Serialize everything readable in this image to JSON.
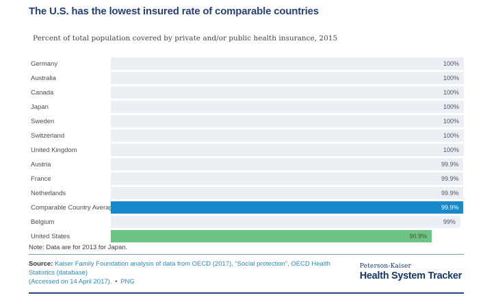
{
  "header": {
    "title": "The U.S. has the lowest insured rate of comparable countries",
    "subtitle": "Percent of total population covered by private and/or public health insurance, 2015"
  },
  "chart_data": {
    "type": "bar",
    "orientation": "horizontal",
    "title": "The U.S. has the lowest insured rate of comparable countries",
    "subtitle": "Percent of total population covered by private and/or public health insurance, 2015",
    "xlim": [
      0,
      100
    ],
    "grid": false,
    "legend": false,
    "categories": [
      "Germany",
      "Australia",
      "Canada",
      "Japan",
      "Sweden",
      "Switzerland",
      "United Kingdom",
      "Austria",
      "France",
      "Netherlands",
      "Comparable Country Average",
      "Belgium",
      "United States"
    ],
    "values": [
      100,
      100,
      100,
      100,
      100,
      100,
      100,
      99.9,
      99.9,
      99.9,
      99.9,
      99,
      90.9
    ],
    "rows": [
      {
        "label": "Germany",
        "value": 100,
        "display": "100%",
        "variant": ""
      },
      {
        "label": "Australia",
        "value": 100,
        "display": "100%",
        "variant": ""
      },
      {
        "label": "Canada",
        "value": 100,
        "display": "100%",
        "variant": ""
      },
      {
        "label": "Japan",
        "value": 100,
        "display": "100%",
        "variant": ""
      },
      {
        "label": "Sweden",
        "value": 100,
        "display": "100%",
        "variant": ""
      },
      {
        "label": "Switzerland",
        "value": 100,
        "display": "100%",
        "variant": ""
      },
      {
        "label": "United Kingdom",
        "value": 100,
        "display": "100%",
        "variant": ""
      },
      {
        "label": "Austria",
        "value": 99.9,
        "display": "99.9%",
        "variant": ""
      },
      {
        "label": "France",
        "value": 99.9,
        "display": "99.9%",
        "variant": ""
      },
      {
        "label": "Netherlands",
        "value": 99.9,
        "display": "99.9%",
        "variant": ""
      },
      {
        "label": "Comparable Country Average",
        "value": 99.9,
        "display": "99.9%",
        "variant": "average"
      },
      {
        "label": "Belgium",
        "value": 99,
        "display": "99%",
        "variant": ""
      },
      {
        "label": "United States",
        "value": 90.9,
        "display": "90.9%",
        "variant": "us"
      }
    ],
    "colors": {
      "bar_default": "#ebeff3",
      "bar_average": "#1789cb",
      "bar_us": "#6ec284",
      "title": "#263f77",
      "link": "#2a8ac6",
      "logo": "#15386b",
      "rule_light": "#8099c4",
      "rule_dark": "#26417e"
    }
  },
  "note": "Note: Data are for 2013 for Japan.",
  "source": {
    "prefix": "Source:",
    "citation_line1": "Kaiser Family Foundation analysis of data from OECD (2017), “Social protection”, OECD Health Statistics (database)",
    "citation_line2": "(Accessed on 14 April 2017).",
    "separator": "•",
    "download_label": "PNG"
  },
  "logo": {
    "top_line": "Peterson-Kaiser",
    "main_line": "Health System Tracker"
  }
}
